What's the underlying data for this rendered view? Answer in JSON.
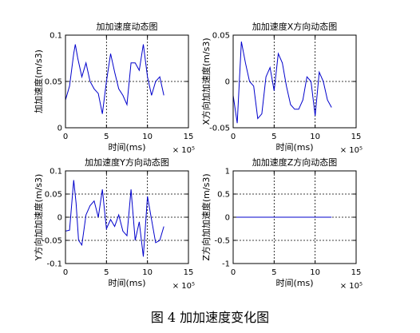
{
  "figure_caption": "图 4 加加速度变化图",
  "colors": {
    "line": "#0000cc",
    "axes": "#000000",
    "grid": "#000000",
    "background": "#ffffff"
  },
  "chart_data": [
    {
      "type": "line",
      "title": "加加速度动态图",
      "xlabel": "时间(ms)",
      "ylabel": "加加速度(m/s3)",
      "x_multiplier": "× 10⁵",
      "xlim": [
        0,
        15
      ],
      "ylim": [
        0,
        0.1
      ],
      "xticks": [
        "0",
        "5",
        "10",
        "15"
      ],
      "yticks": [
        "0",
        "0.05",
        "0.1"
      ],
      "grid": true,
      "series": [
        {
          "x": [
            0,
            0.5,
            1,
            1.2,
            1.5,
            2,
            2.5,
            3,
            3.5,
            4,
            4.5,
            5,
            5.5,
            6,
            6.5,
            7,
            7.5,
            8,
            8.5,
            9,
            9.5,
            10,
            10.5,
            11,
            11.5,
            12
          ],
          "y": [
            0.03,
            0.045,
            0.08,
            0.09,
            0.075,
            0.055,
            0.07,
            0.05,
            0.042,
            0.037,
            0.015,
            0.05,
            0.08,
            0.06,
            0.042,
            0.035,
            0.025,
            0.07,
            0.07,
            0.062,
            0.09,
            0.055,
            0.035,
            0.05,
            0.055,
            0.035
          ]
        }
      ]
    },
    {
      "type": "line",
      "title": "加加速度X方向动态图",
      "xlabel": "时间(ms)",
      "ylabel": "X方向加加速度(m/s3)",
      "x_multiplier": "× 10⁵",
      "xlim": [
        0,
        15
      ],
      "ylim": [
        -0.05,
        0.05
      ],
      "xticks": [
        "0",
        "5",
        "10",
        "15"
      ],
      "yticks": [
        "-0.05",
        "0",
        "0.05"
      ],
      "grid": true,
      "series": [
        {
          "x": [
            0,
            0.5,
            1,
            1.5,
            2,
            2.5,
            3,
            3.5,
            4,
            4.5,
            5,
            5.5,
            6,
            6.5,
            7,
            7.5,
            8,
            8.5,
            9,
            9.5,
            10,
            10.5,
            11,
            11.5,
            12
          ],
          "y": [
            -0.015,
            -0.045,
            0.043,
            0.02,
            0.0,
            -0.005,
            -0.04,
            -0.035,
            0.005,
            0.015,
            -0.01,
            0.03,
            0.02,
            -0.005,
            -0.025,
            -0.03,
            -0.03,
            -0.02,
            0.005,
            0.0,
            -0.037,
            0.01,
            0.0,
            -0.02,
            -0.028
          ]
        }
      ]
    },
    {
      "type": "line",
      "title": "加加速度Y方向动态图",
      "xlabel": "时间(ms)",
      "ylabel": "Y方向加加速度(m/s3)",
      "x_multiplier": "× 10⁵",
      "xlim": [
        0,
        15
      ],
      "ylim": [
        -0.1,
        0.1
      ],
      "xticks": [
        "0",
        "5",
        "10",
        "15"
      ],
      "yticks": [
        "-0.1",
        "-0.05",
        "0",
        "0.05",
        "0.1"
      ],
      "grid": true,
      "series": [
        {
          "x": [
            0,
            0.5,
            1,
            1.3,
            1.6,
            2,
            2.5,
            3,
            3.5,
            4,
            4.5,
            5,
            5.5,
            6,
            6.5,
            7,
            7.5,
            8,
            8.5,
            9,
            9.5,
            10,
            10.5,
            11,
            11.5,
            12
          ],
          "y": [
            -0.03,
            -0.028,
            0.08,
            0.03,
            -0.05,
            -0.06,
            0.005,
            0.025,
            0.035,
            0.0,
            0.06,
            -0.025,
            -0.005,
            -0.02,
            0.005,
            -0.03,
            -0.04,
            0.06,
            -0.05,
            -0.01,
            -0.085,
            0.045,
            -0.005,
            -0.055,
            -0.05,
            -0.02
          ]
        }
      ]
    },
    {
      "type": "line",
      "title": "加加速度Z方向动态图",
      "xlabel": "时间(ms)",
      "ylabel": "Z方向加加速度(m/s3)",
      "x_multiplier": "× 10⁵",
      "xlim": [
        0,
        15
      ],
      "ylim": [
        -1,
        1
      ],
      "xticks": [
        "0",
        "5",
        "10",
        "15"
      ],
      "yticks": [
        "-1",
        "-0.5",
        "0",
        "0.5",
        "1"
      ],
      "grid": true,
      "series": [
        {
          "x": [
            0,
            12
          ],
          "y": [
            0,
            0
          ]
        }
      ]
    }
  ]
}
